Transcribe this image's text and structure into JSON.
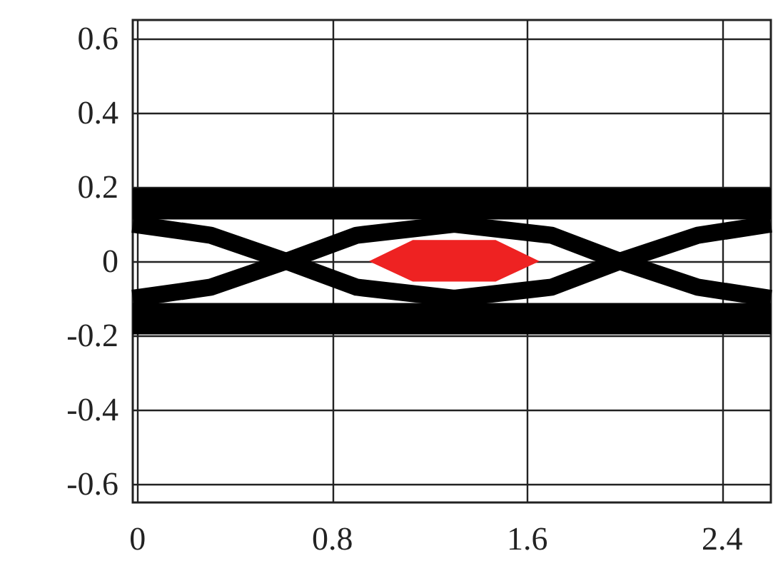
{
  "chart_data": {
    "type": "line",
    "xlim": [
      -0.02,
      2.6
    ],
    "ylim": [
      -0.65,
      0.65
    ],
    "xticks": [
      0,
      0.8,
      1.6,
      2.4
    ],
    "yticks": [
      -0.6,
      -0.4,
      -0.2,
      0,
      0.2,
      0.4,
      0.6
    ],
    "grid": true,
    "marker": "none",
    "line_style": "solid",
    "series": [
      {
        "color": "#000000",
        "x": [
          -0.02,
          2.6
        ],
        "values": [
          0.155,
          0.155
        ]
      },
      {
        "color": "#000000",
        "x": [
          -0.02,
          2.6
        ],
        "values": [
          -0.155,
          -0.155
        ]
      },
      {
        "color": "#000000",
        "x": [
          -0.02,
          0.3,
          0.61,
          0.9,
          1.3,
          1.7,
          1.98,
          2.3,
          2.6
        ],
        "values": [
          0.1,
          0.07,
          0,
          -0.07,
          -0.1,
          -0.07,
          0,
          0.07,
          0.1
        ]
      },
      {
        "color": "#000000",
        "x": [
          -0.02,
          0.3,
          0.61,
          0.9,
          1.3,
          1.7,
          1.98,
          2.3,
          2.6
        ],
        "values": [
          -0.1,
          -0.07,
          0,
          0.07,
          0.1,
          0.07,
          0,
          -0.07,
          -0.1
        ]
      },
      {
        "type": "area",
        "color": "#ee2222",
        "x": [
          0.95,
          1.13,
          1.47,
          1.65,
          1.47,
          1.13
        ],
        "values": [
          0,
          0.057,
          0.057,
          0,
          -0.055,
          -0.055
        ]
      }
    ]
  }
}
